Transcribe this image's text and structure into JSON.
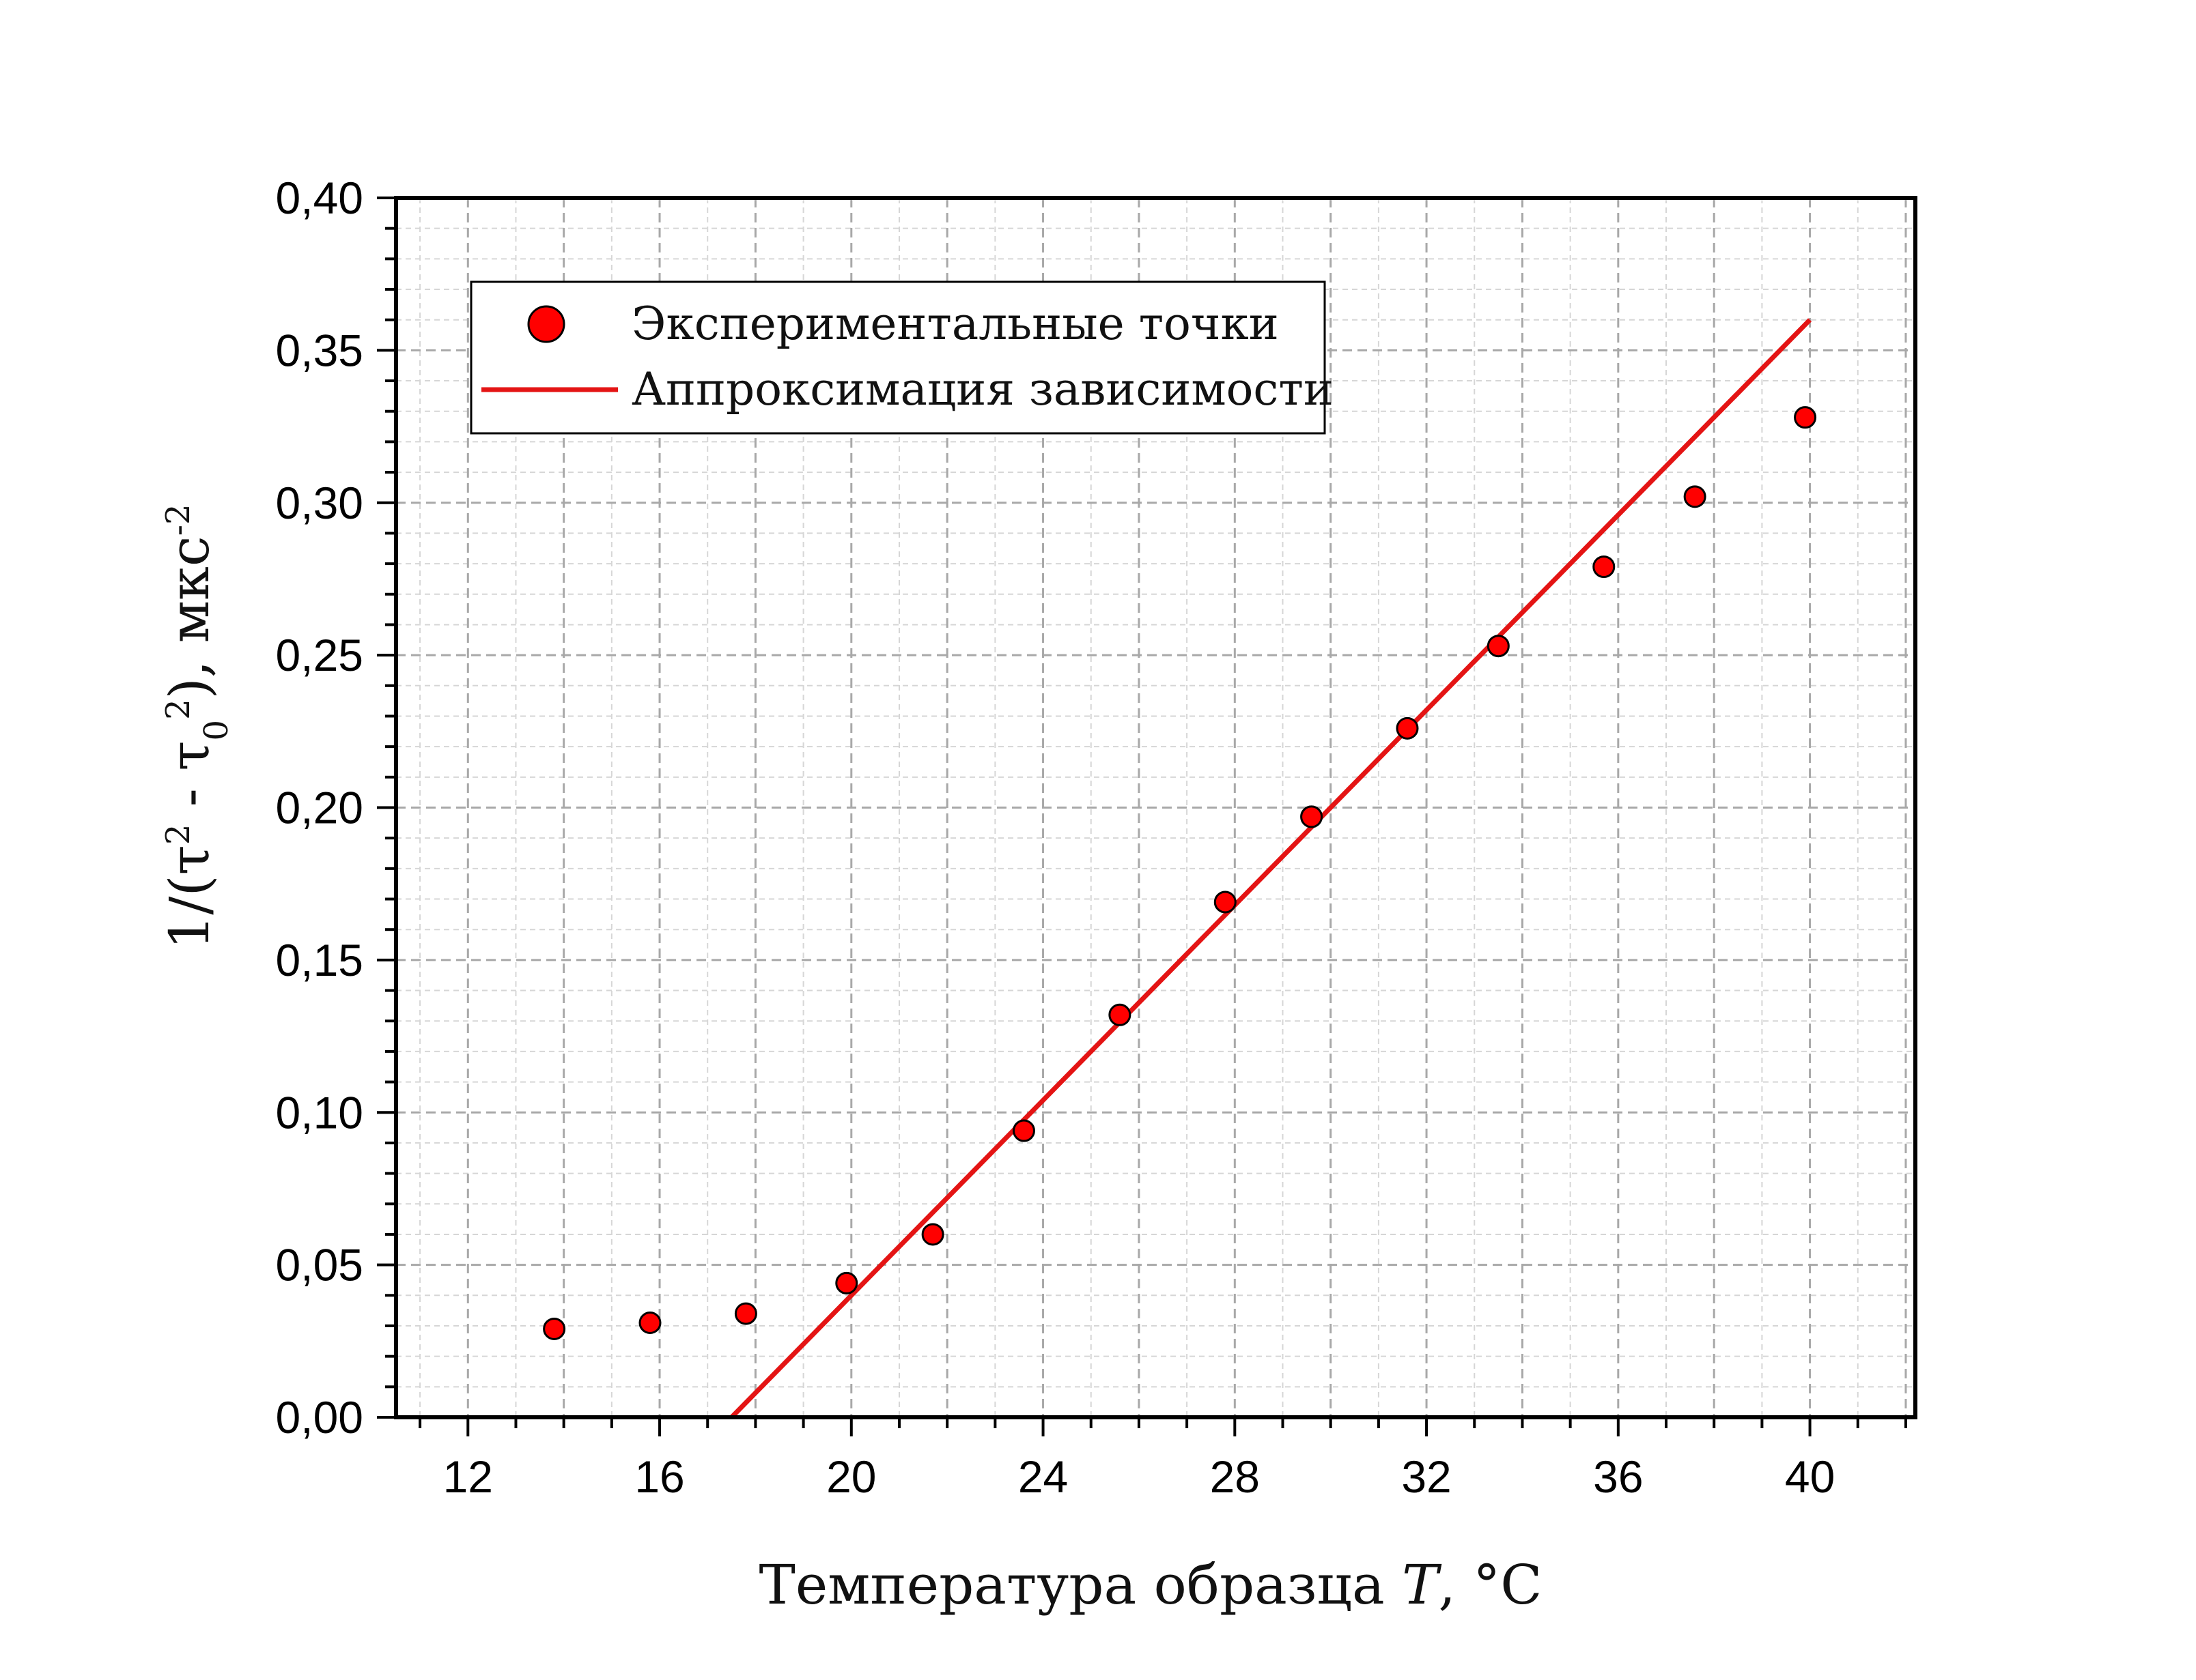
{
  "chart_data": {
    "type": "scatter",
    "xlabel": {
      "main": "Температура образца ",
      "var": "T",
      "unit": ", °C"
    },
    "ylabel": {
      "a": "1/(τ",
      "b": "2",
      "c": " - τ",
      "d": "0",
      "e": "2",
      "f": "), мкс",
      "g": "-2"
    },
    "xlim": [
      10.5,
      42.2
    ],
    "ylim": [
      0,
      0.4
    ],
    "x_ticks": [
      12,
      16,
      20,
      24,
      28,
      32,
      36,
      40
    ],
    "x_tick_labels": [
      "12",
      "16",
      "20",
      "24",
      "28",
      "32",
      "36",
      "40"
    ],
    "y_ticks": [
      0,
      0.05,
      0.1,
      0.15,
      0.2,
      0.25,
      0.3,
      0.35,
      0.4
    ],
    "y_tick_labels": [
      "0,00",
      "0,05",
      "0,10",
      "0,15",
      "0,20",
      "0,25",
      "0,30",
      "0,35",
      "0,40"
    ],
    "grid": true,
    "legend_position": "top-left",
    "series": [
      {
        "name": "Экспериментальные точки",
        "kind": "points",
        "color": "#ff0000",
        "x": [
          13.8,
          15.8,
          17.8,
          19.9,
          21.7,
          23.6,
          25.6,
          27.8,
          29.6,
          31.6,
          33.5,
          35.7,
          37.6,
          39.9
        ],
        "y": [
          0.029,
          0.031,
          0.034,
          0.044,
          0.06,
          0.094,
          0.132,
          0.169,
          0.197,
          0.226,
          0.253,
          0.279,
          0.302,
          0.328
        ]
      },
      {
        "name": "Аппроксимация зависимости",
        "kind": "line",
        "color": "#e41414",
        "x": [
          17.5,
          40.0
        ],
        "y": [
          0.0,
          0.36
        ]
      }
    ]
  }
}
